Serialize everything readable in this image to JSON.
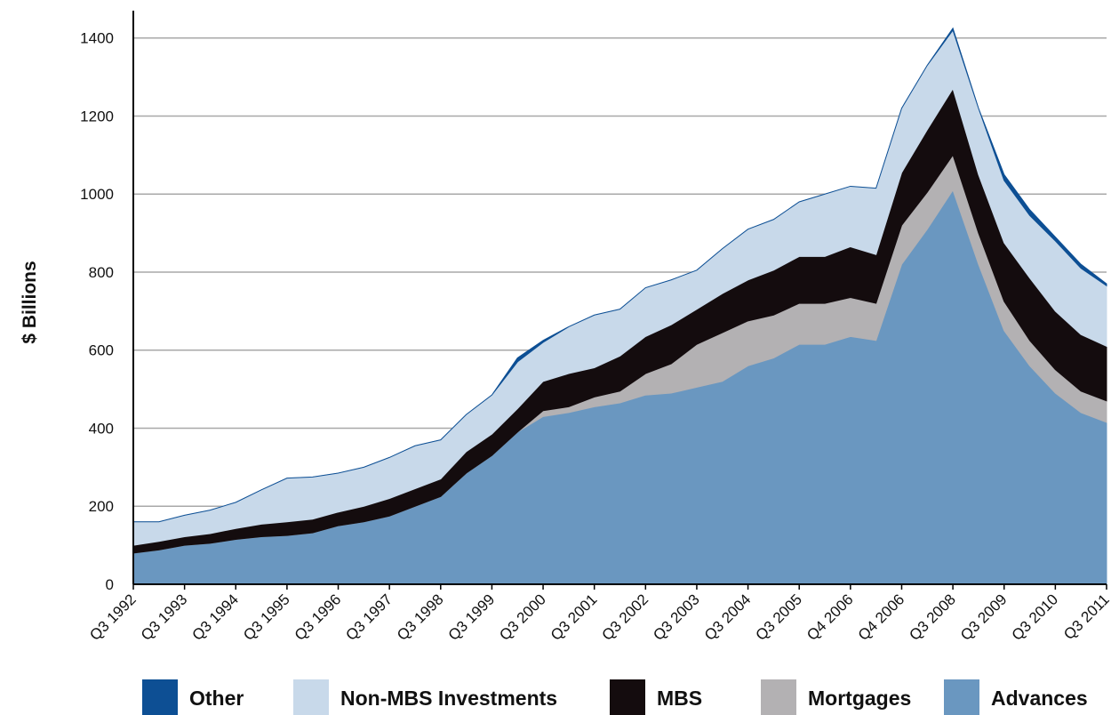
{
  "chart_data": {
    "type": "stacked_area",
    "y_label": "$ Billions",
    "categories": [
      "Q3 1992",
      null,
      "Q3 1993",
      null,
      "Q3 1994",
      null,
      "Q3 1995",
      null,
      "Q3 1996",
      null,
      "Q3 1997",
      null,
      "Q3 1998",
      null,
      "Q3 1999",
      null,
      "Q3 2000",
      null,
      "Q3 2001",
      null,
      "Q3 2002",
      null,
      "Q3 2003",
      null,
      "Q3 2004",
      null,
      "Q3 2005",
      null,
      "Q4 2006",
      null,
      "Q4 2006",
      null,
      "Q3 2008",
      null,
      "Q3 2009",
      null,
      "Q3 2010",
      null,
      "Q3 2011"
    ],
    "series": [
      {
        "name": "Other",
        "color": "#0d4f94",
        "values": [
          0,
          0,
          0,
          0,
          0,
          0,
          0,
          0,
          0,
          0,
          0,
          0,
          0,
          0,
          0,
          10,
          5,
          0,
          0,
          0,
          0,
          0,
          0,
          0,
          0,
          0,
          0,
          0,
          0,
          0,
          0,
          0,
          5,
          0,
          15,
          15,
          10,
          10,
          5
        ]
      },
      {
        "name": "Non-MBS Investments",
        "color": "#c8d9ea",
        "values": [
          60,
          50,
          55,
          60,
          67,
          88,
          112,
          108,
          100,
          100,
          105,
          110,
          100,
          95,
          100,
          120,
          100,
          120,
          135,
          120,
          125,
          115,
          100,
          115,
          130,
          130,
          140,
          160,
          155,
          170,
          165,
          165,
          150,
          170,
          160,
          160,
          180,
          170,
          155
        ]
      },
      {
        "name": "MBS",
        "color": "#140c0e",
        "values": [
          20,
          22,
          22,
          25,
          28,
          32,
          35,
          35,
          35,
          40,
          45,
          45,
          45,
          55,
          55,
          60,
          75,
          85,
          75,
          90,
          95,
          100,
          90,
          100,
          105,
          115,
          120,
          120,
          130,
          125,
          135,
          160,
          170,
          150,
          150,
          160,
          150,
          145,
          140
        ]
      },
      {
        "name": "Mortgages",
        "color": "#b3b1b3",
        "values": [
          0,
          0,
          0,
          0,
          0,
          0,
          0,
          0,
          0,
          0,
          0,
          0,
          0,
          0,
          0,
          0,
          15,
          15,
          25,
          30,
          55,
          75,
          110,
          125,
          115,
          110,
          105,
          105,
          100,
          95,
          100,
          95,
          90,
          80,
          75,
          65,
          60,
          55,
          55
        ]
      },
      {
        "name": "Advances",
        "color": "#6a97c0",
        "values": [
          80,
          88,
          100,
          105,
          115,
          122,
          125,
          132,
          150,
          160,
          175,
          200,
          225,
          285,
          330,
          390,
          430,
          440,
          455,
          465,
          485,
          490,
          505,
          520,
          560,
          580,
          615,
          615,
          635,
          625,
          820,
          910,
          1010,
          820,
          650,
          560,
          490,
          440,
          415
        ]
      }
    ],
    "ylim": [
      0,
      1470
    ],
    "yticks": [
      0,
      200,
      400,
      600,
      800,
      1000,
      1200,
      1400
    ],
    "grid": true,
    "legend": "bottom"
  }
}
